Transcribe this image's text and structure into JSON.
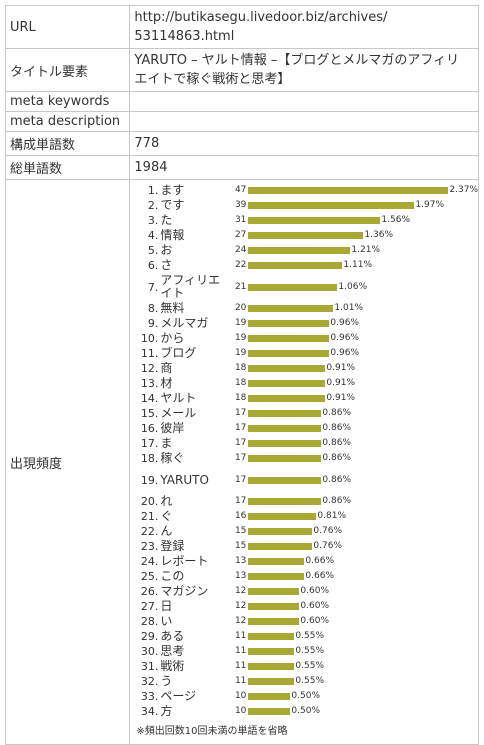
{
  "rows": {
    "url_label": "URL",
    "url_value_line1": "http://butikasegu.livedoor.biz/archives/",
    "url_value_line2": "53114863.html",
    "title_label": "タイトル要素",
    "title_value_line1": "YARUTO – ヤルト情報 –【ブログとメルマガのアフィリ",
    "title_value_line2": "エイトで稼ぐ戦術と思考】",
    "keywords_label": "meta keywords",
    "keywords_value": "",
    "description_label": "meta description",
    "description_value": "",
    "unique_words_label": "構成単語数",
    "unique_words_value": "778",
    "total_words_label": "総単語数",
    "total_words_value": "1984",
    "frequency_label": "出現頻度",
    "note": "※頻出回数10回未満の単語を省略"
  },
  "colors": {
    "bar": "#a8a834",
    "border": "#c8c8c8"
  },
  "words": [
    {
      "rank": "1.",
      "word": "ます",
      "count": "47",
      "pct": "2.37%",
      "pct_value": 2.37
    },
    {
      "rank": "2.",
      "word": "です",
      "count": "39",
      "pct": "1.97%",
      "pct_value": 1.97
    },
    {
      "rank": "3.",
      "word": "た",
      "count": "31",
      "pct": "1.56%",
      "pct_value": 1.56
    },
    {
      "rank": "4.",
      "word": "情報",
      "count": "27",
      "pct": "1.36%",
      "pct_value": 1.36
    },
    {
      "rank": "5.",
      "word": "お",
      "count": "24",
      "pct": "1.21%",
      "pct_value": 1.21
    },
    {
      "rank": "6.",
      "word": "さ",
      "count": "22",
      "pct": "1.11%",
      "pct_value": 1.11
    },
    {
      "rank": "7.",
      "word": "アフィリエイト",
      "count": "21",
      "pct": "1.06%",
      "pct_value": 1.06
    },
    {
      "rank": "8.",
      "word": "無料",
      "count": "20",
      "pct": "1.01%",
      "pct_value": 1.01
    },
    {
      "rank": "9.",
      "word": "メルマガ",
      "count": "19",
      "pct": "0.96%",
      "pct_value": 0.96
    },
    {
      "rank": "10.",
      "word": "から",
      "count": "19",
      "pct": "0.96%",
      "pct_value": 0.96
    },
    {
      "rank": "11.",
      "word": "ブログ",
      "count": "19",
      "pct": "0.96%",
      "pct_value": 0.96
    },
    {
      "rank": "12.",
      "word": "商",
      "count": "18",
      "pct": "0.91%",
      "pct_value": 0.91
    },
    {
      "rank": "13.",
      "word": "材",
      "count": "18",
      "pct": "0.91%",
      "pct_value": 0.91
    },
    {
      "rank": "14.",
      "word": "ヤルト",
      "count": "18",
      "pct": "0.91%",
      "pct_value": 0.91
    },
    {
      "rank": "15.",
      "word": "メール",
      "count": "17",
      "pct": "0.86%",
      "pct_value": 0.86
    },
    {
      "rank": "16.",
      "word": "彼岸",
      "count": "17",
      "pct": "0.86%",
      "pct_value": 0.86
    },
    {
      "rank": "17.",
      "word": "ま",
      "count": "17",
      "pct": "0.86%",
      "pct_value": 0.86
    },
    {
      "rank": "18.",
      "word": "稼ぐ",
      "count": "17",
      "pct": "0.86%",
      "pct_value": 0.86
    },
    {
      "rank": "19.",
      "word": "YARUTO",
      "count": "17",
      "pct": "0.86%",
      "pct_value": 0.86
    },
    {
      "rank": "20.",
      "word": "れ",
      "count": "17",
      "pct": "0.86%",
      "pct_value": 0.86
    },
    {
      "rank": "21.",
      "word": "ぐ",
      "count": "16",
      "pct": "0.81%",
      "pct_value": 0.81
    },
    {
      "rank": "22.",
      "word": "ん",
      "count": "15",
      "pct": "0.76%",
      "pct_value": 0.76
    },
    {
      "rank": "23.",
      "word": "登録",
      "count": "15",
      "pct": "0.76%",
      "pct_value": 0.76
    },
    {
      "rank": "24.",
      "word": "レポート",
      "count": "13",
      "pct": "0.66%",
      "pct_value": 0.66
    },
    {
      "rank": "25.",
      "word": "この",
      "count": "13",
      "pct": "0.66%",
      "pct_value": 0.66
    },
    {
      "rank": "26.",
      "word": "マガジン",
      "count": "12",
      "pct": "0.60%",
      "pct_value": 0.6
    },
    {
      "rank": "27.",
      "word": "日",
      "count": "12",
      "pct": "0.60%",
      "pct_value": 0.6
    },
    {
      "rank": "28.",
      "word": "い",
      "count": "12",
      "pct": "0.60%",
      "pct_value": 0.6
    },
    {
      "rank": "29.",
      "word": "ある",
      "count": "11",
      "pct": "0.55%",
      "pct_value": 0.55
    },
    {
      "rank": "30.",
      "word": "思考",
      "count": "11",
      "pct": "0.55%",
      "pct_value": 0.55
    },
    {
      "rank": "31.",
      "word": "戦術",
      "count": "11",
      "pct": "0.55%",
      "pct_value": 0.55
    },
    {
      "rank": "32.",
      "word": "う",
      "count": "11",
      "pct": "0.55%",
      "pct_value": 0.55
    },
    {
      "rank": "33.",
      "word": "ページ",
      "count": "10",
      "pct": "0.50%",
      "pct_value": 0.5
    },
    {
      "rank": "34.",
      "word": "方",
      "count": "10",
      "pct": "0.50%",
      "pct_value": 0.5
    }
  ]
}
